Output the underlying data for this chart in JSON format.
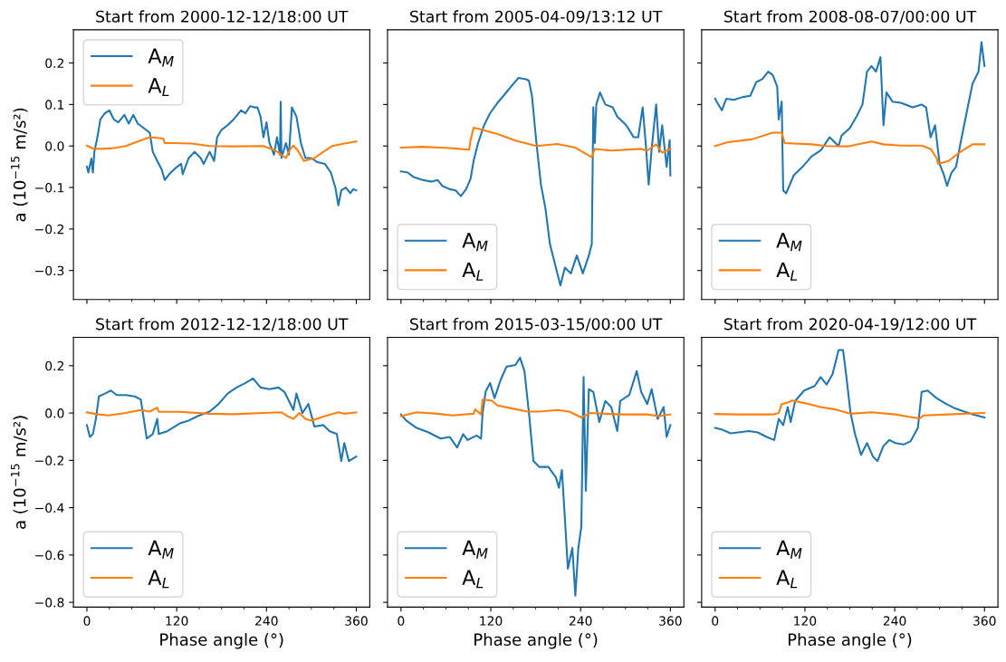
{
  "chart_data": [
    {
      "type": "line",
      "title": "Start from 2000-12-12/18:00 UT",
      "ylabel": "a (10$^{−15}$ m/s²)",
      "legend": "top left",
      "tick_labels": "y",
      "xlim": [
        -18,
        378
      ],
      "xticks": [
        0,
        {
          "value": 30,
          "label": null
        },
        {
          "value": 60,
          "label": null
        },
        {
          "value": 90,
          "label": null
        },
        120,
        {
          "value": 150,
          "label": null
        },
        {
          "value": 180,
          "label": null
        },
        {
          "value": 210,
          "label": null
        },
        240,
        {
          "value": 270,
          "label": null
        },
        {
          "value": 300,
          "label": null
        },
        {
          "value": 330,
          "label": null
        },
        360
      ],
      "ylim": [
        -0.37,
        0.28
      ],
      "yticks": [
        {
          "value": 0.2,
          "label": "0.2"
        },
        {
          "value": 0.1,
          "label": "0.1"
        },
        {
          "value": 0.0,
          "label": "0.0"
        },
        {
          "value": -0.1,
          "label": "−0.1"
        },
        {
          "value": -0.2,
          "label": "−0.2"
        },
        {
          "value": -0.3,
          "label": "−0.3"
        }
      ],
      "series": [
        {
          "name": "A$_{M}$",
          "color": "#1f77b4",
          "x": [
            0,
            2,
            6,
            8,
            10,
            14,
            18,
            24,
            30,
            36,
            42,
            50,
            56,
            62,
            68,
            76,
            84,
            88,
            94,
            100,
            104,
            110,
            118,
            126,
            128,
            136,
            144,
            152,
            156,
            164,
            170,
            174,
            180,
            188,
            196,
            206,
            212,
            218,
            224,
            228,
            232,
            236,
            240,
            244,
            250,
            254,
            258,
            259,
            260,
            266,
            270,
            274,
            280,
            286,
            292,
            300,
            308,
            318,
            326,
            332,
            336,
            340,
            346,
            352,
            356,
            360
          ],
          "values": [
            -0.05,
            -0.064,
            -0.03,
            -0.064,
            -0.014,
            0.021,
            0.064,
            0.079,
            0.086,
            0.064,
            0.057,
            0.075,
            0.054,
            0.075,
            0.054,
            0.043,
            0.032,
            -0.014,
            -0.036,
            -0.057,
            -0.082,
            -0.068,
            -0.054,
            -0.043,
            -0.068,
            -0.029,
            -0.014,
            -0.029,
            -0.043,
            -0.014,
            -0.036,
            0.021,
            0.039,
            0.05,
            0.064,
            0.086,
            0.079,
            0.096,
            0.093,
            0.093,
            0.071,
            0.021,
            0.057,
            0.007,
            -0.021,
            0.021,
            -0.021,
            0.107,
            -0.029,
            0.007,
            -0.021,
            0.093,
            0.071,
            0.007,
            -0.029,
            -0.029,
            -0.039,
            -0.043,
            -0.064,
            -0.1,
            -0.143,
            -0.107,
            -0.1,
            -0.114,
            -0.104,
            -0.107
          ]
        },
        {
          "name": "A$_{L}$",
          "color": "#ff7f0e",
          "x": [
            0,
            8,
            20,
            36,
            52,
            68,
            84,
            92,
            102,
            104,
            116,
            140,
            164,
            196,
            236,
            252,
            266,
            272,
            276,
            282,
            290,
            304,
            316,
            328,
            344,
            360
          ],
          "values": [
            0.001,
            -0.006,
            -0.007,
            -0.005,
            0.0,
            0.011,
            0.021,
            0.02,
            0.018,
            0.007,
            0.007,
            0.006,
            0.0,
            -0.001,
            0.0,
            -0.011,
            -0.029,
            -0.007,
            0.001,
            -0.011,
            -0.036,
            -0.029,
            -0.014,
            0.0,
            0.006,
            0.011
          ]
        }
      ]
    },
    {
      "type": "line",
      "title": "Start from 2005-04-09/13:12 UT",
      "legend": "bottom left",
      "tick_labels": false,
      "xlim": [
        -18,
        378
      ],
      "xticks": [
        0,
        {
          "value": 30,
          "label": null
        },
        {
          "value": 60,
          "label": null
        },
        {
          "value": 90,
          "label": null
        },
        120,
        {
          "value": 150,
          "label": null
        },
        {
          "value": 180,
          "label": null
        },
        {
          "value": 210,
          "label": null
        },
        240,
        {
          "value": 270,
          "label": null
        },
        {
          "value": 300,
          "label": null
        },
        {
          "value": 330,
          "label": null
        },
        360
      ],
      "ylim": [
        -0.37,
        0.28
      ],
      "yticks": [
        0.2,
        0.1,
        0.0,
        -0.1,
        -0.2,
        -0.3
      ],
      "series": [
        {
          "name": "A$_{M}$",
          "color": "#1f77b4",
          "x": [
            0,
            9,
            17,
            29,
            41,
            49,
            55,
            65,
            73,
            80,
            87,
            93,
            97,
            103,
            111,
            119,
            129,
            137,
            147,
            157,
            167,
            171,
            175,
            181,
            187,
            193,
            199,
            205,
            213,
            219,
            227,
            235,
            243,
            251,
            255,
            257,
            259,
            261,
            266,
            273,
            283,
            289,
            301,
            311,
            317,
            323,
            327,
            331,
            335,
            341,
            345,
            349,
            355,
            359,
            360
          ],
          "values": [
            -0.061,
            -0.064,
            -0.075,
            -0.082,
            -0.086,
            -0.082,
            -0.096,
            -0.104,
            -0.107,
            -0.121,
            -0.104,
            -0.079,
            -0.036,
            0.007,
            0.05,
            0.079,
            0.104,
            0.121,
            0.143,
            0.164,
            0.161,
            0.157,
            0.121,
            0.007,
            -0.093,
            -0.15,
            -0.236,
            -0.279,
            -0.336,
            -0.293,
            -0.307,
            -0.264,
            -0.307,
            -0.264,
            -0.236,
            0.093,
            0.007,
            0.1,
            0.129,
            0.1,
            0.093,
            0.071,
            0.05,
            0.021,
            0.021,
            0.093,
            0.007,
            -0.093,
            -0.007,
            0.1,
            -0.014,
            0.05,
            -0.05,
            0.014,
            -0.071
          ]
        },
        {
          "name": "A$_{L}$",
          "color": "#ff7f0e",
          "x": [
            0,
            29,
            65,
            91,
            93,
            97,
            105,
            129,
            153,
            181,
            209,
            233,
            255,
            259,
            281,
            321,
            329,
            341,
            349,
            360
          ],
          "values": [
            -0.004,
            -0.002,
            -0.005,
            -0.009,
            0.014,
            0.044,
            0.041,
            0.029,
            0.013,
            0.0,
            0.005,
            -0.004,
            -0.027,
            -0.007,
            -0.011,
            -0.007,
            -0.011,
            0.004,
            -0.016,
            -0.007
          ]
        }
      ]
    },
    {
      "type": "line",
      "title": "Start from 2008-08-07/00:00 UT",
      "legend": "bottom left",
      "tick_labels": false,
      "xlim": [
        -18,
        378
      ],
      "xticks": [
        0,
        {
          "value": 30,
          "label": null
        },
        {
          "value": 60,
          "label": null
        },
        {
          "value": 90,
          "label": null
        },
        120,
        {
          "value": 150,
          "label": null
        },
        {
          "value": 180,
          "label": null
        },
        {
          "value": 210,
          "label": null
        },
        240,
        {
          "value": 270,
          "label": null
        },
        {
          "value": 300,
          "label": null
        },
        {
          "value": 330,
          "label": null
        },
        360
      ],
      "ylim": [
        -0.37,
        0.28
      ],
      "yticks": [
        0.2,
        0.1,
        0.0,
        -0.1,
        -0.2,
        -0.3
      ],
      "series": [
        {
          "name": "A$_{M}$",
          "color": "#1f77b4",
          "x": [
            0,
            3,
            9,
            15,
            25,
            37,
            47,
            55,
            63,
            71,
            77,
            83,
            85,
            89,
            91,
            95,
            105,
            117,
            129,
            141,
            153,
            165,
            169,
            180,
            189,
            197,
            203,
            209,
            215,
            221,
            225,
            229,
            237,
            248,
            264,
            276,
            282,
            288,
            294,
            300,
            306,
            310,
            316,
            322,
            328,
            336,
            344,
            352,
            356,
            360
          ],
          "values": [
            0.114,
            0.104,
            0.086,
            0.114,
            0.111,
            0.118,
            0.121,
            0.154,
            0.161,
            0.179,
            0.171,
            0.143,
            0.064,
            0.107,
            -0.107,
            -0.114,
            -0.071,
            -0.05,
            -0.025,
            -0.011,
            0.021,
            0.0,
            0.025,
            0.043,
            0.071,
            0.1,
            0.179,
            0.193,
            0.179,
            0.214,
            0.05,
            0.129,
            0.107,
            0.104,
            0.093,
            0.1,
            0.093,
            0.021,
            0.05,
            -0.043,
            -0.071,
            -0.096,
            -0.064,
            -0.05,
            0.007,
            0.079,
            0.15,
            0.179,
            0.25,
            0.193
          ]
        },
        {
          "name": "A$_{L}$",
          "color": "#ff7f0e",
          "x": [
            0,
            17,
            49,
            77,
            89,
            93,
            129,
            149,
            177,
            209,
            225,
            248,
            276,
            288,
            296,
            298,
            312,
            328,
            344,
            360
          ],
          "values": [
            0.0,
            0.009,
            0.016,
            0.032,
            0.032,
            0.007,
            0.004,
            0.0,
            -0.001,
            0.011,
            0.004,
            0.001,
            0.001,
            -0.007,
            -0.029,
            -0.043,
            -0.036,
            -0.014,
            0.004,
            0.004
          ]
        }
      ]
    },
    {
      "type": "line",
      "title": "Start from 2012-12-12/18:00 UT",
      "xlabel": "Phase angle (°)",
      "ylabel": "a (10$^{−15}$ m/s²)",
      "legend": "bottom left",
      "xlim": [
        -18,
        378
      ],
      "xticks": [
        0,
        {
          "value": 30,
          "label": null
        },
        {
          "value": 60,
          "label": null
        },
        {
          "value": 90,
          "label": null
        },
        120,
        {
          "value": 150,
          "label": null
        },
        {
          "value": 180,
          "label": null
        },
        {
          "value": 210,
          "label": null
        },
        240,
        {
          "value": 270,
          "label": null
        },
        {
          "value": 300,
          "label": null
        },
        {
          "value": 330,
          "label": null
        },
        360
      ],
      "ylim": [
        -0.82,
        0.32
      ],
      "yticks": [
        {
          "value": 0.2,
          "label": "0.2"
        },
        {
          "value": 0.0,
          "label": "0.0"
        },
        {
          "value": -0.2,
          "label": "−0.2"
        },
        {
          "value": -0.4,
          "label": "−0.4"
        },
        {
          "value": -0.6,
          "label": "−0.6"
        },
        {
          "value": -0.8,
          "label": "−0.8"
        }
      ],
      "series": [
        {
          "name": "A$_{M}$",
          "color": "#1f77b4",
          "x": [
            0,
            4,
            8,
            12,
            16,
            24,
            32,
            40,
            52,
            64,
            72,
            76,
            80,
            88,
            94,
            96,
            108,
            124,
            136,
            148,
            164,
            176,
            188,
            200,
            212,
            222,
            232,
            244,
            256,
            264,
            270,
            276,
            280,
            288,
            296,
            304,
            316,
            324,
            334,
            340,
            344,
            350,
            360
          ],
          "values": [
            -0.051,
            -0.101,
            -0.089,
            -0.025,
            0.07,
            0.082,
            0.095,
            0.076,
            0.076,
            0.07,
            0.057,
            -0.025,
            -0.108,
            -0.089,
            -0.025,
            -0.089,
            -0.076,
            -0.044,
            -0.032,
            -0.013,
            0.006,
            0.038,
            0.082,
            0.108,
            0.127,
            0.146,
            0.108,
            0.101,
            0.108,
            0.089,
            0.051,
            0.013,
            0.082,
            0.0,
            0.038,
            -0.057,
            -0.051,
            -0.076,
            -0.089,
            -0.203,
            -0.127,
            -0.203,
            -0.184
          ]
        },
        {
          "name": "A$_{L}$",
          "color": "#ff7f0e",
          "x": [
            0,
            16,
            28,
            52,
            72,
            84,
            94,
            96,
            124,
            164,
            196,
            236,
            260,
            268,
            276,
            284,
            292,
            300,
            316,
            336,
            344,
            360
          ],
          "values": [
            0.003,
            -0.006,
            -0.01,
            0.0,
            0.013,
            0.006,
            0.023,
            0.005,
            0.005,
            -0.003,
            -0.005,
            0.0,
            0.003,
            -0.013,
            -0.025,
            0.0,
            -0.025,
            -0.032,
            -0.015,
            0.003,
            -0.003,
            0.003
          ]
        }
      ]
    },
    {
      "type": "line",
      "title": "Start from 2015-03-15/00:00 UT",
      "xlabel": "Phase angle (°)",
      "legend": "bottom left",
      "tick_labels": "x",
      "xlim": [
        -18,
        378
      ],
      "xticks": [
        0,
        {
          "value": 30,
          "label": null
        },
        {
          "value": 60,
          "label": null
        },
        {
          "value": 90,
          "label": null
        },
        120,
        {
          "value": 150,
          "label": null
        },
        {
          "value": 180,
          "label": null
        },
        {
          "value": 210,
          "label": null
        },
        240,
        {
          "value": 270,
          "label": null
        },
        {
          "value": 300,
          "label": null
        },
        {
          "value": 330,
          "label": null
        },
        360
      ],
      "ylim": [
        -0.82,
        0.32
      ],
      "yticks": [
        0.2,
        0.0,
        -0.2,
        -0.4,
        -0.6,
        -0.8
      ],
      "series": [
        {
          "name": "A$_{M}$",
          "color": "#1f77b4",
          "x": [
            0,
            7,
            21,
            37,
            53,
            65,
            75,
            83,
            89,
            101,
            107,
            109,
            113,
            119,
            125,
            133,
            141,
            153,
            159,
            165,
            171,
            177,
            185,
            197,
            207,
            211,
            215,
            219,
            223,
            229,
            233,
            237,
            241,
            244,
            247,
            251,
            257,
            265,
            273,
            281,
            289,
            293,
            305,
            315,
            321,
            329,
            335,
            343,
            351,
            355,
            360
          ],
          "values": [
            -0.006,
            -0.032,
            -0.063,
            -0.082,
            -0.108,
            -0.101,
            -0.146,
            -0.089,
            -0.114,
            -0.095,
            -0.108,
            0.0,
            0.089,
            0.127,
            0.063,
            0.139,
            0.196,
            0.203,
            0.234,
            0.177,
            0.0,
            -0.203,
            -0.228,
            -0.228,
            -0.272,
            -0.316,
            -0.241,
            -0.443,
            -0.658,
            -0.57,
            -0.772,
            -0.57,
            -0.481,
            0.152,
            -0.329,
            0.101,
            0.089,
            -0.038,
            0.051,
            0.025,
            -0.076,
            0.051,
            0.076,
            0.177,
            0.089,
            0.038,
            0.101,
            -0.025,
            0.025,
            -0.101,
            -0.051
          ]
        },
        {
          "name": "A$_{L}$",
          "color": "#ff7f0e",
          "x": [
            0,
            21,
            49,
            69,
            97,
            99,
            107,
            109,
            121,
            129,
            149,
            169,
            185,
            209,
            225,
            241,
            253,
            273,
            297,
            329,
            345,
            360
          ],
          "values": [
            -0.013,
            0.003,
            -0.003,
            -0.01,
            -0.003,
            0.015,
            -0.006,
            0.057,
            0.053,
            0.032,
            0.019,
            0.006,
            0.006,
            0.013,
            0.006,
            -0.019,
            0.0,
            -0.003,
            -0.006,
            -0.006,
            -0.013,
            -0.006
          ]
        }
      ]
    },
    {
      "type": "line",
      "title": "Start from 2020-04-19/12:00 UT",
      "xlabel": "Phase angle (°)",
      "legend": "bottom left",
      "tick_labels": "x",
      "xlim": [
        -18,
        378
      ],
      "xticks": [
        0,
        {
          "value": 30,
          "label": null
        },
        {
          "value": 60,
          "label": null
        },
        {
          "value": 90,
          "label": null
        },
        120,
        {
          "value": 150,
          "label": null
        },
        {
          "value": 180,
          "label": null
        },
        {
          "value": 210,
          "label": null
        },
        240,
        {
          "value": 270,
          "label": null
        },
        {
          "value": 300,
          "label": null
        },
        {
          "value": 330,
          "label": null
        },
        360
      ],
      "ylim": [
        -0.82,
        0.32
      ],
      "yticks": [
        0.2,
        0.0,
        -0.2,
        -0.4,
        -0.6,
        -0.8
      ],
      "series": [
        {
          "name": "A$_{M}$",
          "color": "#1f77b4",
          "x": [
            0,
            9,
            21,
            45,
            57,
            69,
            79,
            85,
            91,
            97,
            101,
            107,
            119,
            133,
            141,
            149,
            157,
            165,
            171,
            175,
            181,
            187,
            195,
            203,
            211,
            217,
            225,
            233,
            241,
            252,
            261,
            271,
            276,
            284,
            296,
            309,
            321,
            333,
            345,
            360
          ],
          "values": [
            -0.063,
            -0.07,
            -0.086,
            -0.076,
            -0.082,
            -0.101,
            -0.114,
            -0.025,
            -0.051,
            0.025,
            -0.038,
            0.051,
            0.095,
            0.114,
            0.152,
            0.12,
            0.165,
            0.266,
            0.266,
            0.165,
            0.0,
            -0.089,
            -0.177,
            -0.127,
            -0.184,
            -0.203,
            -0.139,
            -0.114,
            -0.127,
            -0.133,
            -0.12,
            -0.063,
            0.089,
            0.095,
            0.063,
            0.038,
            0.019,
            0.006,
            -0.006,
            -0.019
          ]
        },
        {
          "name": "A$_{L}$",
          "color": "#ff7f0e",
          "x": [
            0,
            29,
            77,
            85,
            89,
            97,
            103,
            121,
            141,
            161,
            181,
            209,
            241,
            257,
            273,
            279,
            311,
            360
          ],
          "values": [
            -0.004,
            -0.006,
            -0.006,
            0.0,
            0.038,
            0.044,
            0.053,
            0.041,
            0.025,
            0.015,
            -0.003,
            0.003,
            -0.006,
            -0.015,
            -0.023,
            -0.01,
            -0.006,
            0.0
          ]
        }
      ]
    }
  ]
}
